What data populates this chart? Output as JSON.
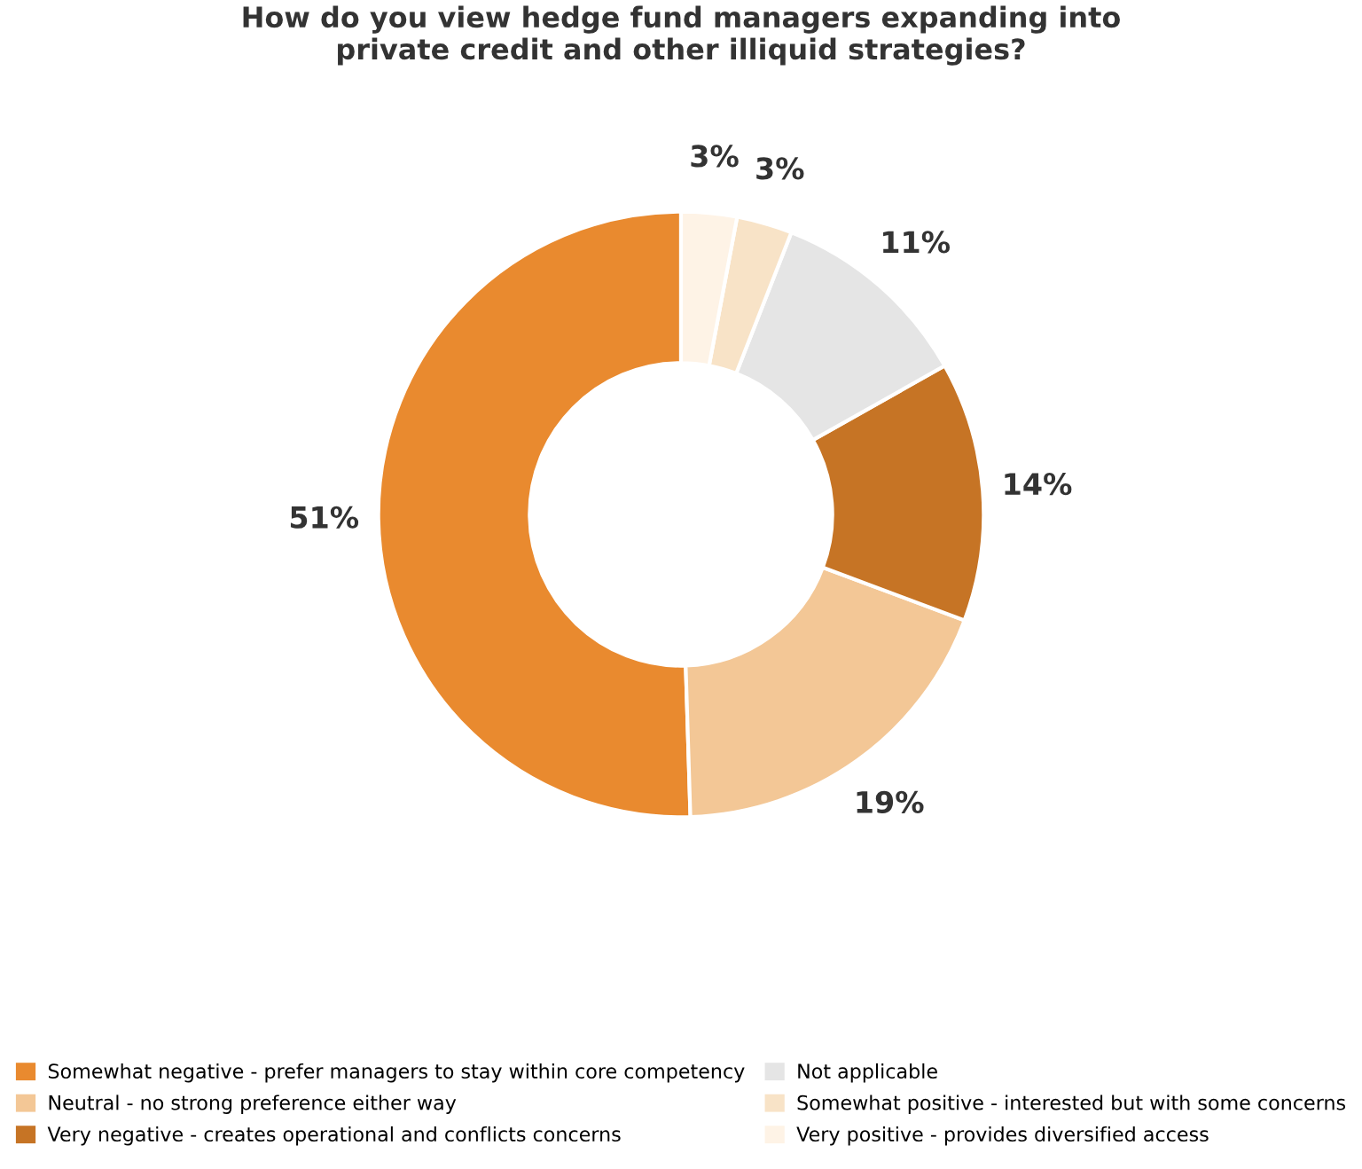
{
  "chart_data": {
    "type": "donut",
    "title": "How do you view hedge fund managers expanding into\nprivate credit and other illiquid strategies?",
    "categories": [
      "Somewhat negative - prefer managers to stay within core competency",
      "Neutral - no strong preference either way",
      "Very negative - creates operational and conflicts concerns",
      "Not applicable",
      "Somewhat positive - interested but with some concerns",
      "Very positive - provides diversified access"
    ],
    "values": [
      51,
      19,
      14,
      11,
      3,
      3
    ],
    "colors": [
      "#e98a2f",
      "#f3c796",
      "#c67425",
      "#e5e5e5",
      "#f8e3c7",
      "#fef3e6"
    ],
    "value_labels": [
      "51%",
      "19%",
      "14%",
      "11%",
      "3%",
      "3%"
    ],
    "legend": "bottom"
  }
}
